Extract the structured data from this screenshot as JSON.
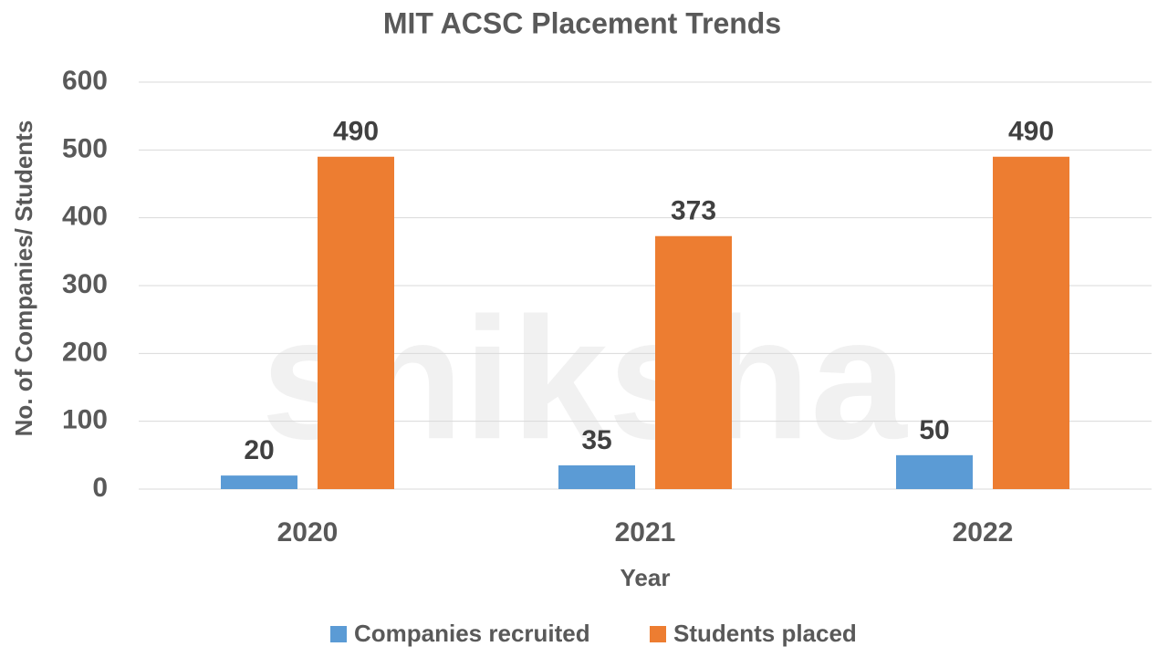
{
  "chart_data": {
    "type": "bar",
    "title": "MIT ACSC Placement Trends",
    "watermark": "shiksha",
    "x_label": "Year",
    "y_label": "No. of Companies/ Students",
    "categories": [
      "2020",
      "2021",
      "2022"
    ],
    "series": [
      {
        "name": "Companies recruited",
        "color": "#5b9bd5",
        "values": [
          20,
          35,
          50
        ]
      },
      {
        "name": "Students placed",
        "color": "#ed7d31",
        "values": [
          490,
          373,
          490
        ]
      }
    ],
    "ylim": [
      0,
      600
    ],
    "yticks": [
      0,
      100,
      200,
      300,
      400,
      500,
      600
    ],
    "grid": true,
    "legend": "bottom"
  }
}
